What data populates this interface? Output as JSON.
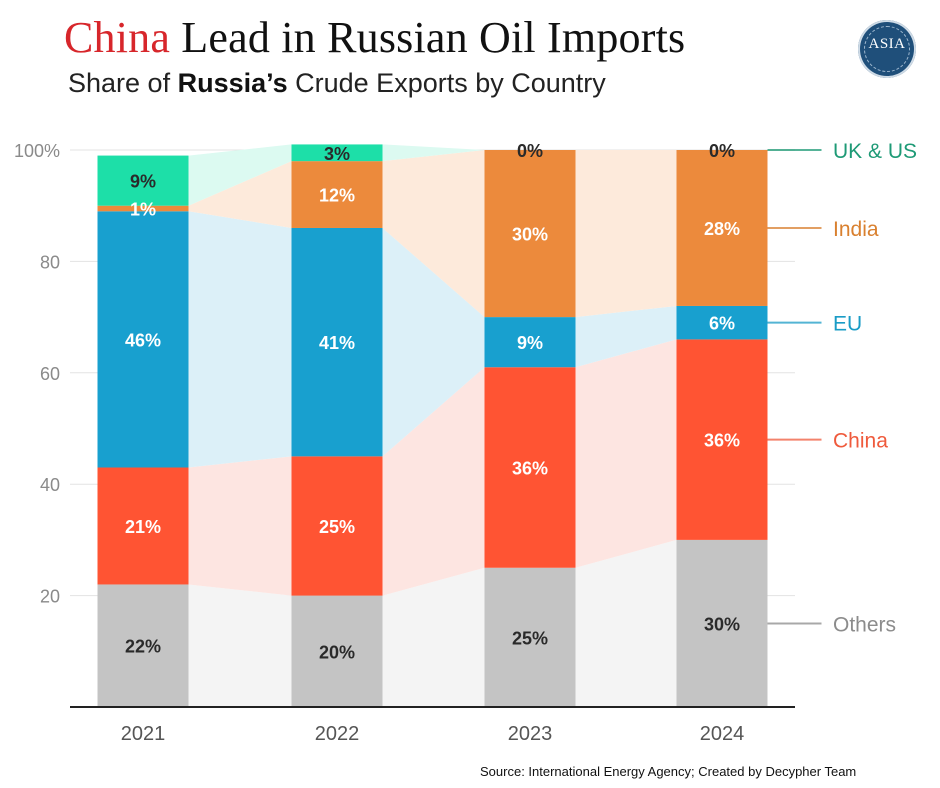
{
  "header": {
    "title_accent": "China",
    "title_rest": " Lead in Russian Oil Imports",
    "subtitle_pre": "Share of ",
    "subtitle_bold": "Russia’s",
    "subtitle_post": " Crude Exports by Country",
    "logo_text": "ASIA"
  },
  "source": "Source: International Energy Agency; Created by Decypher Team",
  "chart_data": {
    "type": "bar",
    "stacked": true,
    "categories": [
      "2021",
      "2022",
      "2023",
      "2024"
    ],
    "ylim": [
      0,
      100
    ],
    "yticks": [
      {
        "value": 20,
        "label": "20"
      },
      {
        "value": 40,
        "label": "40"
      },
      {
        "value": 60,
        "label": "60"
      },
      {
        "value": 80,
        "label": "80"
      },
      {
        "value": 100,
        "label": "100%"
      }
    ],
    "grid": true,
    "legend": "right, aligned with last bar",
    "series": [
      {
        "name": "Others",
        "color": "#c4c4c4",
        "fill": "#f4f4f4",
        "legend_color": "#8c8c8c",
        "label_dark": true,
        "values": [
          22,
          20,
          25,
          30
        ],
        "labels": [
          "22%",
          "20%",
          "25%",
          "30%"
        ]
      },
      {
        "name": "China",
        "color": "#ff5433",
        "fill": "#fde5e1",
        "legend_color": "#ef5a3c",
        "label_dark": false,
        "values": [
          21,
          25,
          36,
          36
        ],
        "labels": [
          "21%",
          "25%",
          "36%",
          "36%"
        ]
      },
      {
        "name": "EU",
        "color": "#18a0cf",
        "fill": "#dcf0f8",
        "legend_color": "#1a9cc6",
        "label_dark": false,
        "values": [
          46,
          41,
          9,
          6
        ],
        "labels": [
          "46%",
          "41%",
          "9%",
          "6%"
        ]
      },
      {
        "name": "India",
        "color": "#ec8a3c",
        "fill": "#fdeadb",
        "legend_color": "#d9802f",
        "label_dark": false,
        "values": [
          1,
          12,
          30,
          28
        ],
        "labels": [
          "1%",
          "12%",
          "30%",
          "28%"
        ]
      },
      {
        "name": "UK & US",
        "color": "#1ddfa8",
        "fill": "#dcfaf1",
        "legend_color": "#1e9a76",
        "label_dark": true,
        "values": [
          9,
          3,
          0,
          0
        ],
        "labels": [
          "9%",
          "3%",
          "0%",
          "0%"
        ]
      }
    ]
  }
}
